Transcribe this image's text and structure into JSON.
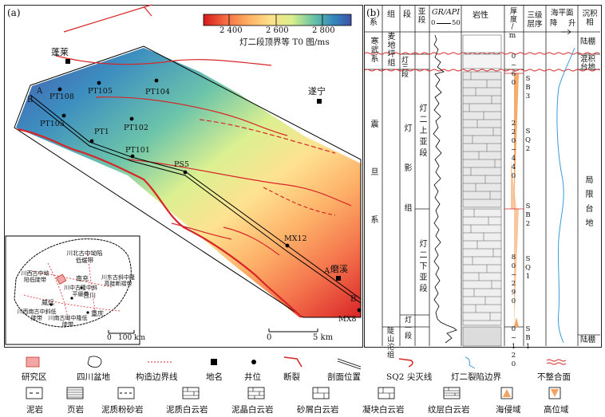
{
  "panel_a": {
    "label": "(a)",
    "colorbar": {
      "ticks": [
        "2 400",
        "2 600",
        "2 800"
      ],
      "caption": "灯二段顶界等 T0 图/ms",
      "colors": [
        "#d7191c",
        "#f46d43",
        "#fdae61",
        "#fee08b",
        "#d9ef8b",
        "#66c2a5",
        "#3288bd",
        "#3f4fa8"
      ]
    },
    "cities": [
      {
        "name": "蓬莱"
      },
      {
        "name": "遂宁"
      },
      {
        "name": "磨溪"
      }
    ],
    "wells": [
      "PT108",
      "PT105",
      "PT104",
      "PT103",
      "PT1",
      "PT102",
      "PT101",
      "PS5",
      "MX12",
      "MX8"
    ],
    "section_ends": {
      "a": "A",
      "b": "B",
      "a2": "A′",
      "b2": "B′"
    },
    "scale": {
      "zero": "0",
      "five": "5 km"
    },
    "inset": {
      "labels": [
        "川北古中坳陷低缓带",
        "南充",
        "川中古隆中斜平缓带",
        "川西古中坳陷低陡带",
        "合川",
        "川东古斜中隆高陡断褶带",
        "威远",
        "重庆",
        "川西南古中斜低陡带",
        "川南古坳中隆低陡带"
      ],
      "scale_zero": "0",
      "scale_len": "100 km"
    }
  },
  "panel_b": {
    "label": "(b)",
    "headers": {
      "system": "系",
      "group": "组",
      "section": "段",
      "subsection": "亚段",
      "gr": "GR/API",
      "gr_min": "0",
      "gr_max": "50",
      "lithology": "岩性",
      "thickness": "厚度/m",
      "sequence": "三级层序",
      "sea_level": "海平面",
      "sea_fall": "降",
      "sea_rise": "升",
      "facies": "沉积相"
    },
    "systems": {
      "upper": "寒武系",
      "lower": "震旦系"
    },
    "groups": {
      "upper": "麦地坪组",
      "lower": "灯影组"
    },
    "sections": {
      "deng3": "灯三段",
      "deng2": "灯二段",
      "deng1": "灯一段"
    },
    "subsections": {
      "upper": "灯二上亚段",
      "lower": "灯二下亚段"
    },
    "thickness_values": [
      "0~60",
      "220~440",
      "80~290",
      "0~120"
    ],
    "sequence_labels": [
      "SB3",
      "SQ2",
      "SB2",
      "SQ1",
      "SB1"
    ],
    "facies": {
      "top": "陆棚",
      "mixed": "混积台地",
      "main": "局限台地",
      "bottom": "陆棚"
    },
    "bottom_unit": "陡山沱组"
  },
  "legend": {
    "row1": [
      "研究区",
      "四川盆地",
      "构造边界线",
      "地名",
      "井位",
      "断裂",
      "剖面位置",
      "SQ2 尖灭线",
      "灯二裂陷边界",
      "不整合面"
    ],
    "row2": [
      "泥岩",
      "页岩",
      "泥质粉砂岩",
      "泥质白云岩",
      "泥晶白云岩",
      "砂屑白云岩",
      "凝块白云岩",
      "纹层白云岩",
      "海侵域",
      "高位域"
    ]
  }
}
